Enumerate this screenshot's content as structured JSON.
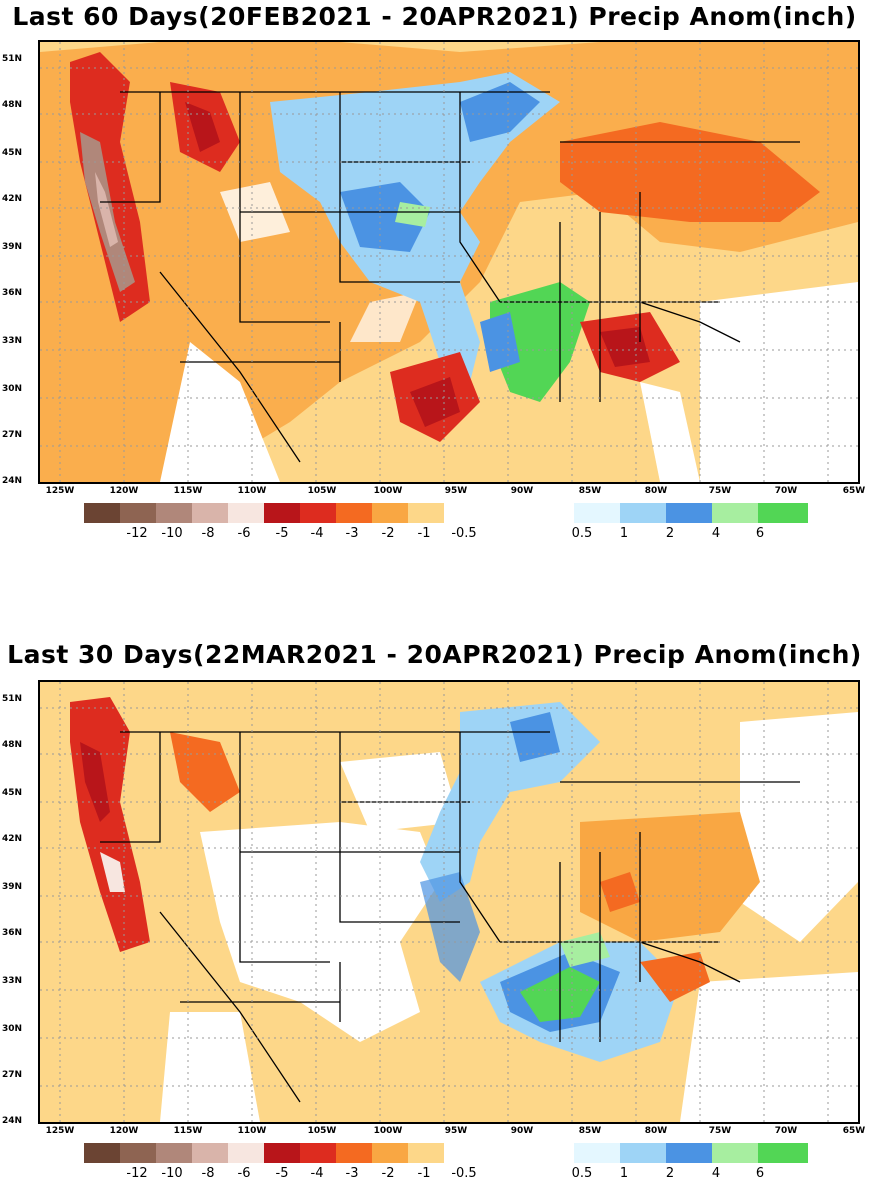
{
  "panels": [
    {
      "title": "Last 60 Days(20FEB2021 - 20APR2021) Precip Anom(inch)",
      "lat_labels": [
        "51N",
        "48N",
        "45N",
        "42N",
        "39N",
        "36N",
        "33N",
        "30N",
        "27N",
        "24N"
      ],
      "lon_labels": [
        "125W",
        "120W",
        "115W",
        "110W",
        "105W",
        "100W",
        "95W",
        "90W",
        "85W",
        "80W",
        "75W",
        "70W",
        "65W"
      ],
      "colorbar_dry_labels": [
        "-12",
        "-10",
        "-8",
        "-6",
        "-5",
        "-4",
        "-3",
        "-2",
        "-1",
        "-0.5"
      ],
      "colorbar_wet_labels": [
        "0.5",
        "1",
        "2",
        "4",
        "6"
      ]
    },
    {
      "title": "Last 30 Days(22MAR2021 - 20APR2021) Precip Anom(inch)",
      "lat_labels": [
        "51N",
        "48N",
        "45N",
        "42N",
        "39N",
        "36N",
        "33N",
        "30N",
        "27N",
        "24N"
      ],
      "lon_labels": [
        "125W",
        "120W",
        "115W",
        "110W",
        "105W",
        "100W",
        "95W",
        "90W",
        "85W",
        "80W",
        "75W",
        "70W",
        "65W"
      ],
      "colorbar_dry_labels": [
        "-12",
        "-10",
        "-8",
        "-6",
        "-5",
        "-4",
        "-3",
        "-2",
        "-1",
        "-0.5"
      ],
      "colorbar_wet_labels": [
        "0.5",
        "1",
        "2",
        "4",
        "6"
      ]
    }
  ],
  "colors": {
    "dry": [
      "#6b4433",
      "#8e6452",
      "#b0877a",
      "#d9b4aa",
      "#f7e6e0",
      "#b8151a",
      "#dd2c1f",
      "#f46a21",
      "#f9a743",
      "#fdd789"
    ],
    "wet": [
      "#e4f7ff",
      "#9ed4f6",
      "#4b93e3",
      "#a7eea0",
      "#52d655"
    ]
  }
}
